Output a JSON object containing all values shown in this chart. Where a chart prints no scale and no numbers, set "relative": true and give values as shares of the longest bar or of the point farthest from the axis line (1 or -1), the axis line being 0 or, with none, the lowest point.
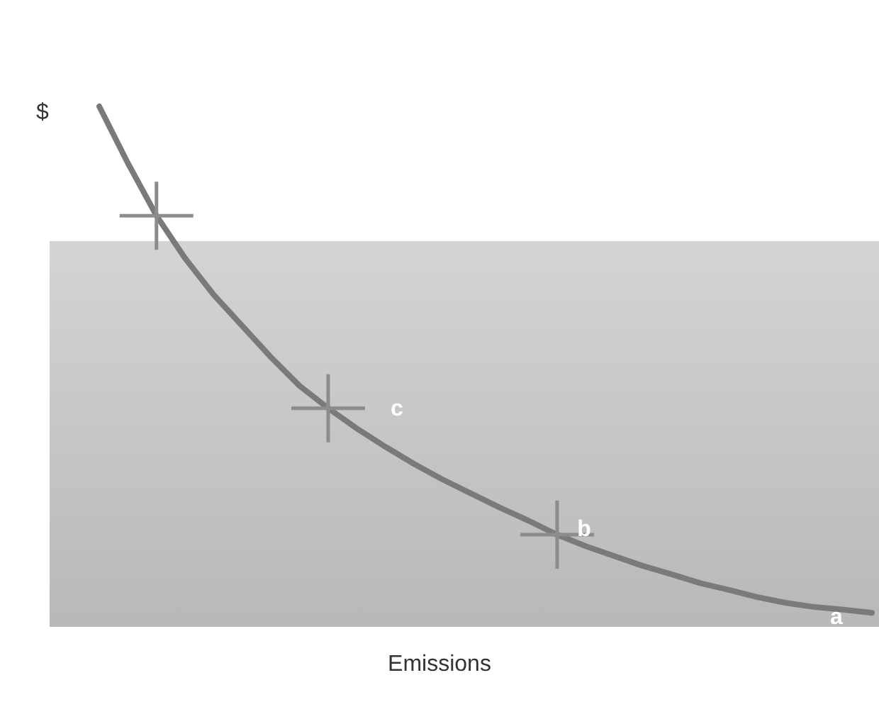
{
  "chart_data": {
    "type": "line",
    "xlabel": "Emissions",
    "ylabel": "$",
    "relative": true,
    "annotations": [
      "c",
      "b",
      "a"
    ],
    "categories": [
      null,
      null,
      null,
      null,
      null,
      null,
      null,
      null,
      null,
      null,
      null,
      null,
      null,
      null,
      null,
      null,
      null,
      null,
      null,
      null,
      null,
      null,
      null,
      null,
      null,
      null,
      null,
      null
    ],
    "series": [
      {
        "color": "#7a7a7a",
        "values": [
          1,
          0.891,
          0.79,
          0.708,
          0.638,
          0.578,
          0.518,
          0.463,
          0.42,
          0.381,
          0.346,
          0.313,
          0.283,
          0.256,
          0.229,
          0.204,
          0.177,
          0.155,
          0.136,
          0.117,
          0.101,
          0.084,
          0.071,
          0.057,
          0.046,
          0.038,
          0.033,
          0.027
        ]
      }
    ]
  }
}
